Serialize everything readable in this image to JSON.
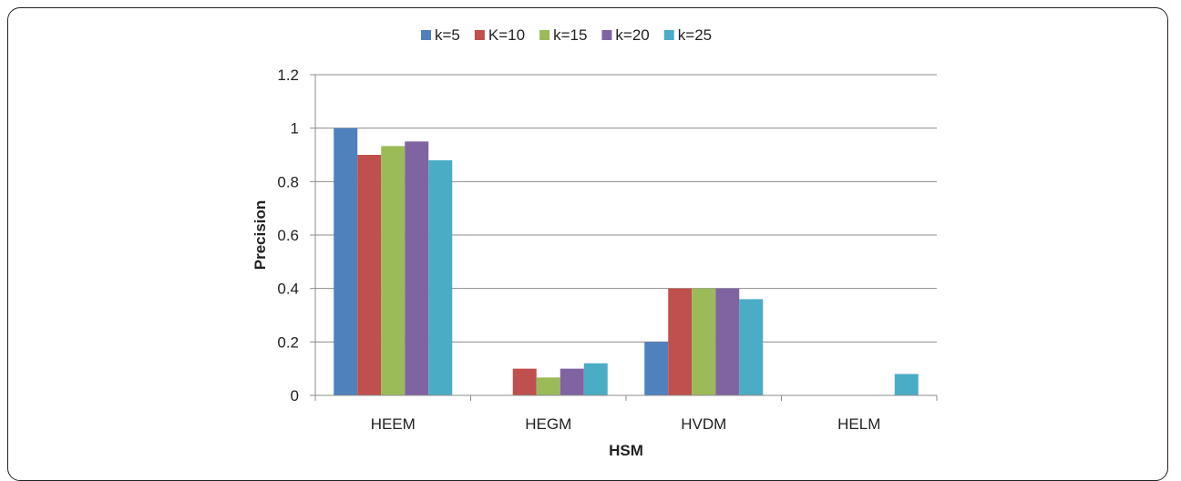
{
  "chart_data": {
    "type": "bar",
    "title": "",
    "xlabel": "HSM",
    "ylabel": "Precision",
    "categories": [
      "HEEM",
      "HEGM",
      "HVDM",
      "HELM"
    ],
    "series": [
      {
        "name": "k=5",
        "color": "#4F81BD",
        "values": [
          1.0,
          0.0,
          0.2,
          0.0
        ]
      },
      {
        "name": "K=10",
        "color": "#C0504D",
        "values": [
          0.9,
          0.1,
          0.4,
          0.0
        ]
      },
      {
        "name": "k=15",
        "color": "#9BBB59",
        "values": [
          0.933,
          0.067,
          0.4,
          0.0
        ]
      },
      {
        "name": "k=20",
        "color": "#8064A2",
        "values": [
          0.95,
          0.1,
          0.4,
          0.0
        ]
      },
      {
        "name": "k=25",
        "color": "#4BACC6",
        "values": [
          0.88,
          0.12,
          0.36,
          0.08
        ]
      }
    ],
    "ylim": [
      0,
      1.2
    ],
    "yticks": [
      "0",
      "0.2",
      "0.4",
      "0.6",
      "0.8",
      "1",
      "1.2"
    ],
    "grid": true,
    "legend_position": "top"
  }
}
